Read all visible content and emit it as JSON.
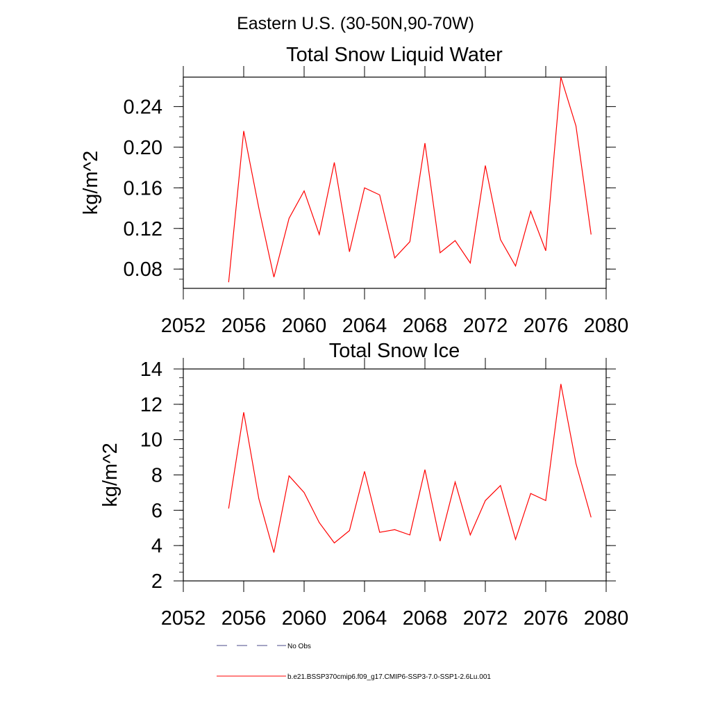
{
  "header": {
    "title": "Eastern U.S. (30-50N,90-70W)"
  },
  "chart_data": [
    {
      "type": "line",
      "title": "Total Snow Liquid Water",
      "xlabel": "",
      "ylabel": "kg/m^2",
      "xlim": [
        2052,
        2080
      ],
      "ylim": [
        0.061,
        0.269
      ],
      "x_ticks": [
        2052,
        2056,
        2060,
        2064,
        2068,
        2072,
        2076,
        2080
      ],
      "y_ticks": [
        0.08,
        0.12,
        0.16,
        0.2,
        0.24
      ],
      "x_tick_labels": [
        "2052",
        "2056",
        "2060",
        "2064",
        "2068",
        "2072",
        "2076",
        "2080"
      ],
      "y_tick_labels": [
        "0.08",
        "0.12",
        "0.16",
        "0.20",
        "0.24"
      ],
      "series": [
        {
          "name": "b.e21.BSSP370cmip6.f09_g17.CMIP6-SSP3-7.0-SSP1-2.6Lu.001",
          "color": "#ff0000",
          "x": [
            2055,
            2056,
            2057,
            2058,
            2059,
            2060,
            2061,
            2062,
            2063,
            2064,
            2065,
            2066,
            2067,
            2068,
            2069,
            2070,
            2071,
            2072,
            2073,
            2074,
            2075,
            2076,
            2077,
            2078,
            2079
          ],
          "values": [
            0.067,
            0.216,
            0.14,
            0.072,
            0.13,
            0.157,
            0.114,
            0.185,
            0.097,
            0.16,
            0.153,
            0.091,
            0.107,
            0.204,
            0.096,
            0.108,
            0.086,
            0.182,
            0.109,
            0.083,
            0.137,
            0.098,
            0.269,
            0.221,
            0.114
          ]
        }
      ]
    },
    {
      "type": "line",
      "title": "Total Snow Ice",
      "xlabel": "",
      "ylabel": "kg/m^2",
      "xlim": [
        2052,
        2080
      ],
      "ylim": [
        2,
        14
      ],
      "x_ticks": [
        2052,
        2056,
        2060,
        2064,
        2068,
        2072,
        2076,
        2080
      ],
      "y_ticks": [
        2,
        4,
        6,
        8,
        10,
        12,
        14
      ],
      "x_tick_labels": [
        "2052",
        "2056",
        "2060",
        "2064",
        "2068",
        "2072",
        "2076",
        "2080"
      ],
      "y_tick_labels": [
        "2",
        "4",
        "6",
        "8",
        "10",
        "12",
        "14"
      ],
      "series": [
        {
          "name": "b.e21.BSSP370cmip6.f09_g17.CMIP6-SSP3-7.0-SSP1-2.6Lu.001",
          "color": "#ff0000",
          "x": [
            2055,
            2056,
            2057,
            2058,
            2059,
            2060,
            2061,
            2062,
            2063,
            2064,
            2065,
            2066,
            2067,
            2068,
            2069,
            2070,
            2071,
            2072,
            2073,
            2074,
            2075,
            2076,
            2077,
            2078,
            2079
          ],
          "values": [
            6.1,
            11.55,
            6.65,
            3.6,
            7.95,
            7.0,
            5.3,
            4.15,
            4.85,
            8.2,
            4.75,
            4.9,
            4.6,
            8.3,
            4.25,
            7.6,
            4.6,
            6.55,
            7.4,
            4.35,
            6.95,
            6.55,
            13.15,
            8.65,
            5.6
          ]
        }
      ]
    }
  ],
  "legend": {
    "items": [
      {
        "label": "No Obs",
        "color": "#4a4a8a",
        "style": "dashed"
      },
      {
        "label": "b.e21.BSSP370cmip6.f09_g17.CMIP6-SSP3-7.0-SSP1-2.6Lu.001",
        "color": "#ff0000",
        "style": "solid"
      }
    ]
  }
}
